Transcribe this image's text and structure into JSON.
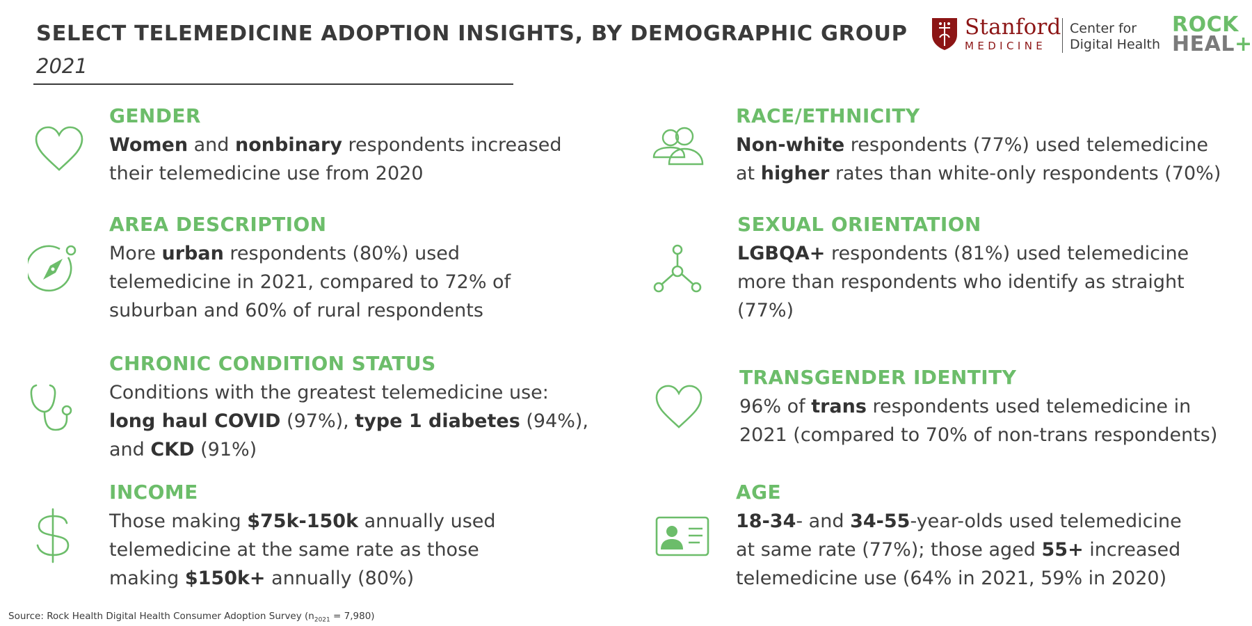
{
  "header": {
    "title": "SELECT TELEMEDICINE ADOPTION INSIGHTS, BY DEMOGRAPHIC GROUP",
    "subtitle": "2021"
  },
  "logos": {
    "stanford_name": "Stanford",
    "stanford_sub": "MEDICINE",
    "center_line1": "Center for",
    "center_line2": "Digital Health",
    "rock_line1": "ROCK",
    "rock_line2_a": "HEAL",
    "rock_line2_b": "+",
    "rock_line2_c": "H",
    "brand_green": "#6cbd6a",
    "stanford_red": "#8c1515"
  },
  "insights": {
    "gender": {
      "icon": "heart-icon",
      "heading": "GENDER",
      "l1_b1": "Women",
      "l1_t1": " and ",
      "l1_b2": "nonbinary",
      "l1_t2": " respondents increased",
      "l2": "their telemedicine use from 2020"
    },
    "race": {
      "icon": "people-icon",
      "heading": "RACE/ETHNICITY",
      "l1_b1": "Non-white",
      "l1_t1": " respondents (77%) used telemedicine",
      "l2_t1": "at ",
      "l2_b1": "higher",
      "l2_t2": " rates than white-only respondents (70%)"
    },
    "area": {
      "icon": "compass-icon",
      "heading": "AREA DESCRIPTION",
      "l1_t1": "More ",
      "l1_b1": "urban",
      "l1_t2": " respondents (80%) used",
      "l2": "telemedicine in 2021, compared to 72% of",
      "l3": "suburban and 60% of rural respondents"
    },
    "orientation": {
      "icon": "network-icon",
      "heading": "SEXUAL ORIENTATION",
      "l1_b1": "LGBQA+",
      "l1_t1": " respondents (81%) used telemedicine",
      "l2": "more than respondents who identify as straight",
      "l3": "(77%)"
    },
    "chronic": {
      "icon": "stethoscope-icon",
      "heading": "CHRONIC CONDITION STATUS",
      "l1": "Conditions with the greatest telemedicine use:",
      "l2_b1": "long haul COVID",
      "l2_t1": " (97%), ",
      "l2_b2": "type 1 diabetes",
      "l2_t2": " (94%),",
      "l3_t1": "and ",
      "l3_b1": "CKD",
      "l3_t2": " (91%)"
    },
    "trans": {
      "icon": "heart-icon",
      "heading": "TRANSGENDER IDENTITY",
      "l1_t1": "96% of ",
      "l1_b1": "trans",
      "l1_t2": " respondents used telemedicine in",
      "l2": "2021 (compared to 70% of non-trans respondents)"
    },
    "income": {
      "icon": "dollar-icon",
      "heading": "INCOME",
      "l1_t1": "Those making ",
      "l1_b1": "$75k-150k",
      "l1_t2": " annually used",
      "l2": "telemedicine at the same rate as those",
      "l3_t1": "making ",
      "l3_b1": "$150k+",
      "l3_t2": " annually (80%)"
    },
    "age": {
      "icon": "id-card-icon",
      "heading": "AGE",
      "l1_b1": "18-34",
      "l1_t1": "- and ",
      "l1_b2": "34-55",
      "l1_t2": "-year-olds used telemedicine",
      "l2_t1": "at same rate (77%); those aged ",
      "l2_b1": "55+",
      "l2_t2": " increased",
      "l3": "telemedicine use (64% in 2021, 59% in 2020)"
    }
  },
  "footer": {
    "source_a": "Source: Rock Health Digital Health Consumer Adoption Survey (n",
    "source_sub": "2021",
    "source_b": " = 7,980)"
  }
}
